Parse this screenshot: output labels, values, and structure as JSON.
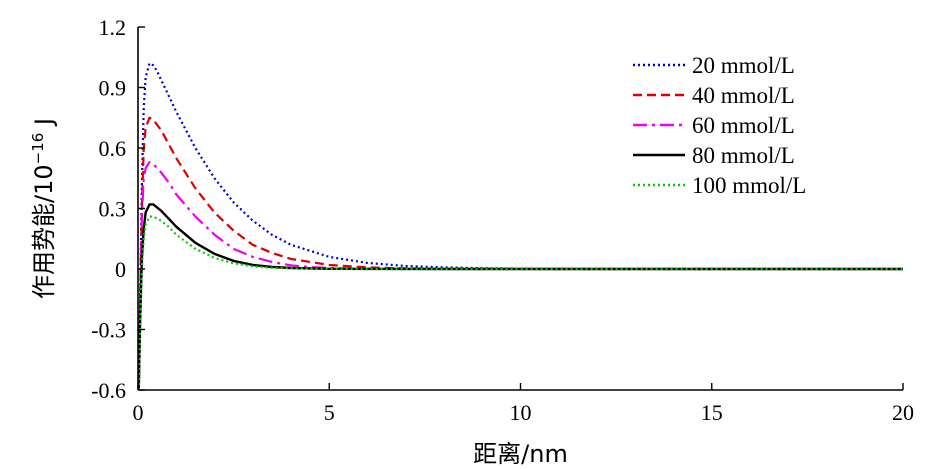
{
  "chart_data": {
    "type": "line",
    "xlabel": "距离/nm",
    "ylabel_main": "作用势能/10",
    "ylabel_exp": "−16",
    "ylabel_unit": " J",
    "xlim": [
      0,
      20
    ],
    "ylim": [
      -0.6,
      1.2
    ],
    "xticks": [
      0,
      5,
      10,
      15,
      20
    ],
    "xtick_labels": [
      "0",
      "5",
      "10",
      "15",
      "20"
    ],
    "yticks": [
      -0.6,
      -0.3,
      0,
      0.3,
      0.6,
      0.9,
      1.2
    ],
    "ytick_labels": [
      "-0.6",
      "-0.3",
      "0",
      "0.3",
      "0.6",
      "0.9",
      "1.2"
    ],
    "grid": false,
    "legend_position": "top-right",
    "series": [
      {
        "name": "20 mmol/L",
        "color": "#0000cc",
        "dash": "dotted",
        "x": [
          0.02,
          0.05,
          0.1,
          0.15,
          0.2,
          0.3,
          0.4,
          0.5,
          0.7,
          1.0,
          1.5,
          2.0,
          2.5,
          3.0,
          3.5,
          4.0,
          5.0,
          6.0,
          7.0,
          8.0,
          9.0,
          10.0,
          12.0,
          15.0,
          20.0
        ],
        "values": [
          -0.6,
          -0.2,
          0.4,
          0.8,
          0.95,
          1.02,
          1.01,
          0.98,
          0.9,
          0.78,
          0.6,
          0.45,
          0.33,
          0.24,
          0.17,
          0.12,
          0.06,
          0.03,
          0.015,
          0.008,
          0.004,
          0.002,
          0.0008,
          0.0002,
          0.0
        ]
      },
      {
        "name": "40 mmol/L",
        "color": "#dd0000",
        "dash": "dashed",
        "x": [
          0.02,
          0.05,
          0.1,
          0.15,
          0.2,
          0.3,
          0.4,
          0.6,
          0.8,
          1.0,
          1.5,
          2.0,
          2.5,
          3.0,
          3.5,
          4.0,
          5.0,
          6.0,
          7.0,
          8.0,
          10.0,
          20.0
        ],
        "values": [
          -0.6,
          -0.2,
          0.3,
          0.6,
          0.7,
          0.75,
          0.74,
          0.69,
          0.62,
          0.55,
          0.4,
          0.28,
          0.19,
          0.12,
          0.08,
          0.05,
          0.02,
          0.008,
          0.003,
          0.001,
          0.0002,
          0.0
        ]
      },
      {
        "name": "60 mmol/L",
        "color": "#ee00ee",
        "dash": "dashdot",
        "x": [
          0.02,
          0.05,
          0.1,
          0.15,
          0.2,
          0.3,
          0.4,
          0.6,
          0.8,
          1.0,
          1.5,
          2.0,
          2.5,
          3.0,
          3.5,
          4.0,
          4.5,
          5.0,
          6.0,
          8.0,
          10.0,
          20.0
        ],
        "values": [
          -0.6,
          -0.2,
          0.25,
          0.45,
          0.5,
          0.53,
          0.52,
          0.48,
          0.43,
          0.37,
          0.26,
          0.17,
          0.1,
          0.06,
          0.035,
          0.018,
          0.01,
          0.005,
          0.0015,
          0.0002,
          0.0,
          0.0
        ]
      },
      {
        "name": "80 mmol/L",
        "color": "#000000",
        "dash": "solid",
        "x": [
          0.02,
          0.05,
          0.1,
          0.15,
          0.2,
          0.3,
          0.4,
          0.6,
          0.8,
          1.0,
          1.5,
          2.0,
          2.5,
          3.0,
          3.5,
          4.0,
          5.0,
          6.0,
          8.0,
          10.0,
          20.0
        ],
        "values": [
          -0.6,
          -0.3,
          0.05,
          0.2,
          0.28,
          0.32,
          0.32,
          0.29,
          0.25,
          0.21,
          0.13,
          0.075,
          0.04,
          0.02,
          0.01,
          0.005,
          0.001,
          0.0002,
          0.0,
          0.0,
          0.0
        ]
      },
      {
        "name": "100 mmol/L",
        "color": "#00cc00",
        "dash": "dotted",
        "x": [
          0.02,
          0.05,
          0.1,
          0.15,
          0.2,
          0.3,
          0.4,
          0.6,
          0.8,
          1.0,
          1.5,
          2.0,
          2.5,
          3.0,
          3.5,
          4.0,
          5.0,
          6.0,
          8.0,
          10.0,
          20.0
        ],
        "values": [
          -0.6,
          -0.3,
          0.0,
          0.15,
          0.22,
          0.26,
          0.26,
          0.24,
          0.21,
          0.17,
          0.1,
          0.055,
          0.028,
          0.013,
          0.006,
          0.003,
          0.0006,
          0.0001,
          0.0,
          0.0,
          0.0
        ]
      }
    ]
  }
}
